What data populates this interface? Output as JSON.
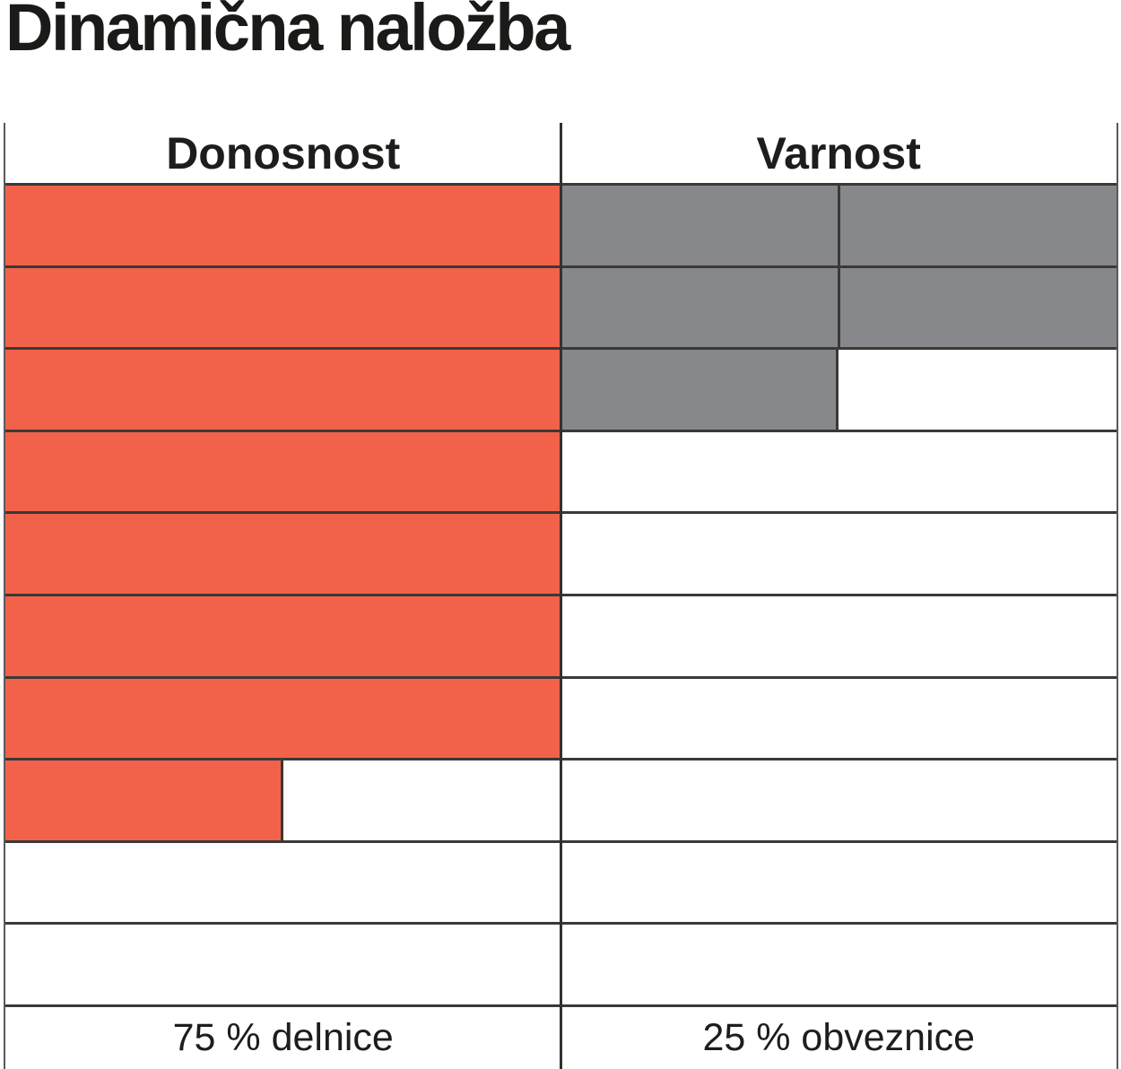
{
  "title": "Dinamična naložba",
  "columns": [
    {
      "id": "donosnost",
      "header": "Donosnost",
      "footer": "75 % delnice",
      "rating": 7.5,
      "max": 10,
      "fill_color": "#f2624a",
      "half_divider": false
    },
    {
      "id": "varnost",
      "header": "Varnost",
      "footer": "25 % obveznice",
      "rating": 2.5,
      "max": 10,
      "fill_color": "#87888b",
      "half_divider": true
    }
  ],
  "colors": {
    "donosnost_fill": "#f2624a",
    "varnost_fill": "#87888b",
    "grid_line": "#3b3937",
    "outer_border": "#59595b",
    "text": "#1d1d1b",
    "background": "#ffffff"
  },
  "chart_data": {
    "type": "bar",
    "title": "Dinamična naložba",
    "categories": [
      "Donosnost",
      "Varnost"
    ],
    "values": [
      7.5,
      2.5
    ],
    "value_max": 10,
    "value_unit": "filled rows out of 10 (filled top-down, half-row increments)",
    "bar_colors": [
      "#f2624a",
      "#87888b"
    ],
    "data_labels": [
      "75 % delnice",
      "25 % obveznice"
    ],
    "legend": "none",
    "grid": "on (10 horizontal row lines per column)",
    "layout": "two side-by-side rating columns; Donosnost = 7.5/10 orange, Varnost = 2.5/10 gray; allocation 75 % delnice / 25 % obveznice"
  }
}
